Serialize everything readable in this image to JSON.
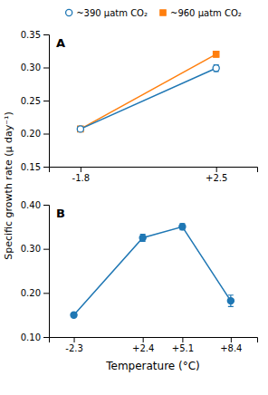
{
  "chart_data": [
    {
      "type": "line",
      "title": "A",
      "ylabel": "Specific growth rate (μ day⁻¹)",
      "legend": "top",
      "x": [
        -1.8,
        2.5
      ],
      "xlim": [
        -2.8,
        3.8
      ],
      "xticks": [
        -1.8,
        {
          "value": 2.5,
          "label": "+2.5"
        }
      ],
      "ylim": [
        0.15,
        0.35
      ],
      "yticks": [
        0.15,
        {
          "value": 0.2,
          "label": "0.20"
        },
        0.25,
        {
          "value": 0.3,
          "label": "0.30"
        },
        0.35
      ],
      "series": [
        {
          "name": "~390 μatm CO₂",
          "marker": "open-circle",
          "values": [
            0.207,
            0.299
          ],
          "errors": [
            0.003,
            0.005
          ]
        },
        {
          "name": "~960 μatm CO₂",
          "marker": "square",
          "values": [
            0.207,
            0.32
          ],
          "errors": [
            0.003,
            0.004
          ]
        }
      ]
    },
    {
      "type": "line",
      "title": "B",
      "xlabel": "Temperature (°C)",
      "x": [
        -2.3,
        2.4,
        5.1,
        8.4
      ],
      "xlim": [
        -4.0,
        10.2
      ],
      "xticks": [
        -2.3,
        {
          "value": 2.4,
          "label": "+2.4"
        },
        {
          "value": 5.1,
          "label": "+5.1"
        },
        {
          "value": 8.4,
          "label": "+8.4"
        }
      ],
      "ylim": [
        0.1,
        0.4
      ],
      "yticks": [
        {
          "value": 0.1,
          "label": "0.10"
        },
        {
          "value": 0.2,
          "label": "0.20"
        },
        {
          "value": 0.3,
          "label": "0.30"
        },
        {
          "value": 0.4,
          "label": "0.40"
        }
      ],
      "series": [
        {
          "marker": "circle",
          "values": [
            0.15,
            0.325,
            0.35,
            0.182
          ],
          "errors": [
            0.003,
            0.008,
            0.007,
            0.013
          ]
        }
      ]
    }
  ]
}
